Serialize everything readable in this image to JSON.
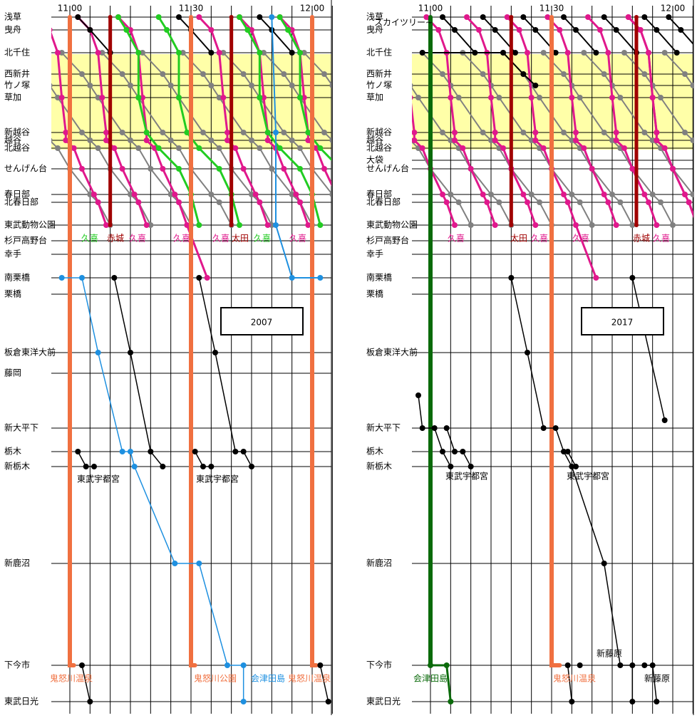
{
  "panels": [
    {
      "year": "2007",
      "times": [
        "11:00",
        "11:30",
        "12:00"
      ],
      "stations": [
        "浅草",
        "曳舟",
        "北千住",
        "西新井",
        "竹ノ塚",
        "草加",
        "新越谷",
        "越谷",
        "北越谷",
        "せんげん台",
        "春日部",
        "北春日部",
        "東武動物公園",
        "杉戸高野台",
        "幸手",
        "南栗橋",
        "栗橋",
        "板倉東洋大前",
        "藤岡",
        "新大平下",
        "栃木",
        "新栃木",
        "新鹿沼",
        "下今市",
        "東武日光"
      ],
      "labels": [
        "久喜",
        "赤城",
        "久喜",
        "久喜",
        "久喜",
        "太田",
        "久喜",
        "久喜",
        "東武宇都宮",
        "東武宇都宮",
        "鬼怒川温泉",
        "鬼怒川公園",
        "会津田島",
        "鬼怒川温泉"
      ]
    },
    {
      "year": "2017",
      "times": [
        "11:00",
        "11:30",
        "12:00"
      ],
      "stations": [
        "浅草",
        "曳舟",
        "北千住",
        "西新井",
        "竹ノ塚",
        "草加",
        "新越谷",
        "越谷",
        "北越谷",
        "大袋",
        "せんげん台",
        "春日部",
        "北春日部",
        "東武動物公園",
        "杉戸高野台",
        "幸手",
        "南栗橋",
        "栗橋",
        "板倉東洋大前",
        "新大平下",
        "栃木",
        "新栃木",
        "新鹿沼",
        "下今市",
        "東武日光"
      ],
      "labels": [
        "スカイツリー~",
        "久喜",
        "太田",
        "久喜",
        "久喜",
        "赤城",
        "久喜",
        "東武宇都宮",
        "東武宇都宮",
        "会津田島",
        "鬼怒川温泉",
        "新藤原",
        "新藤原"
      ]
    }
  ]
}
